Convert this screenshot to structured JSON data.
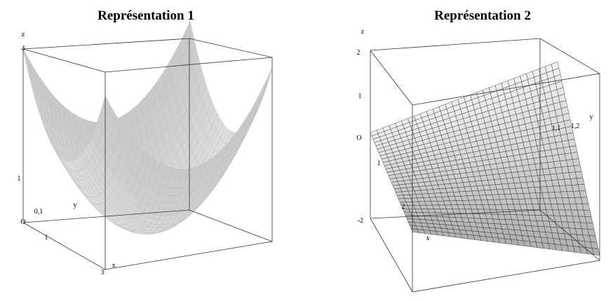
{
  "panels": [
    {
      "title": "Représentation 1",
      "labels": [
        "z",
        "4",
        "1",
        "O",
        "0,1",
        "y",
        "1",
        "3",
        "x"
      ]
    },
    {
      "title": "Représentation 2",
      "labels": [
        "z",
        "2",
        "1",
        "O",
        "-2",
        "1",
        "2",
        "x",
        "y",
        "1,1",
        "1,2"
      ]
    }
  ]
}
